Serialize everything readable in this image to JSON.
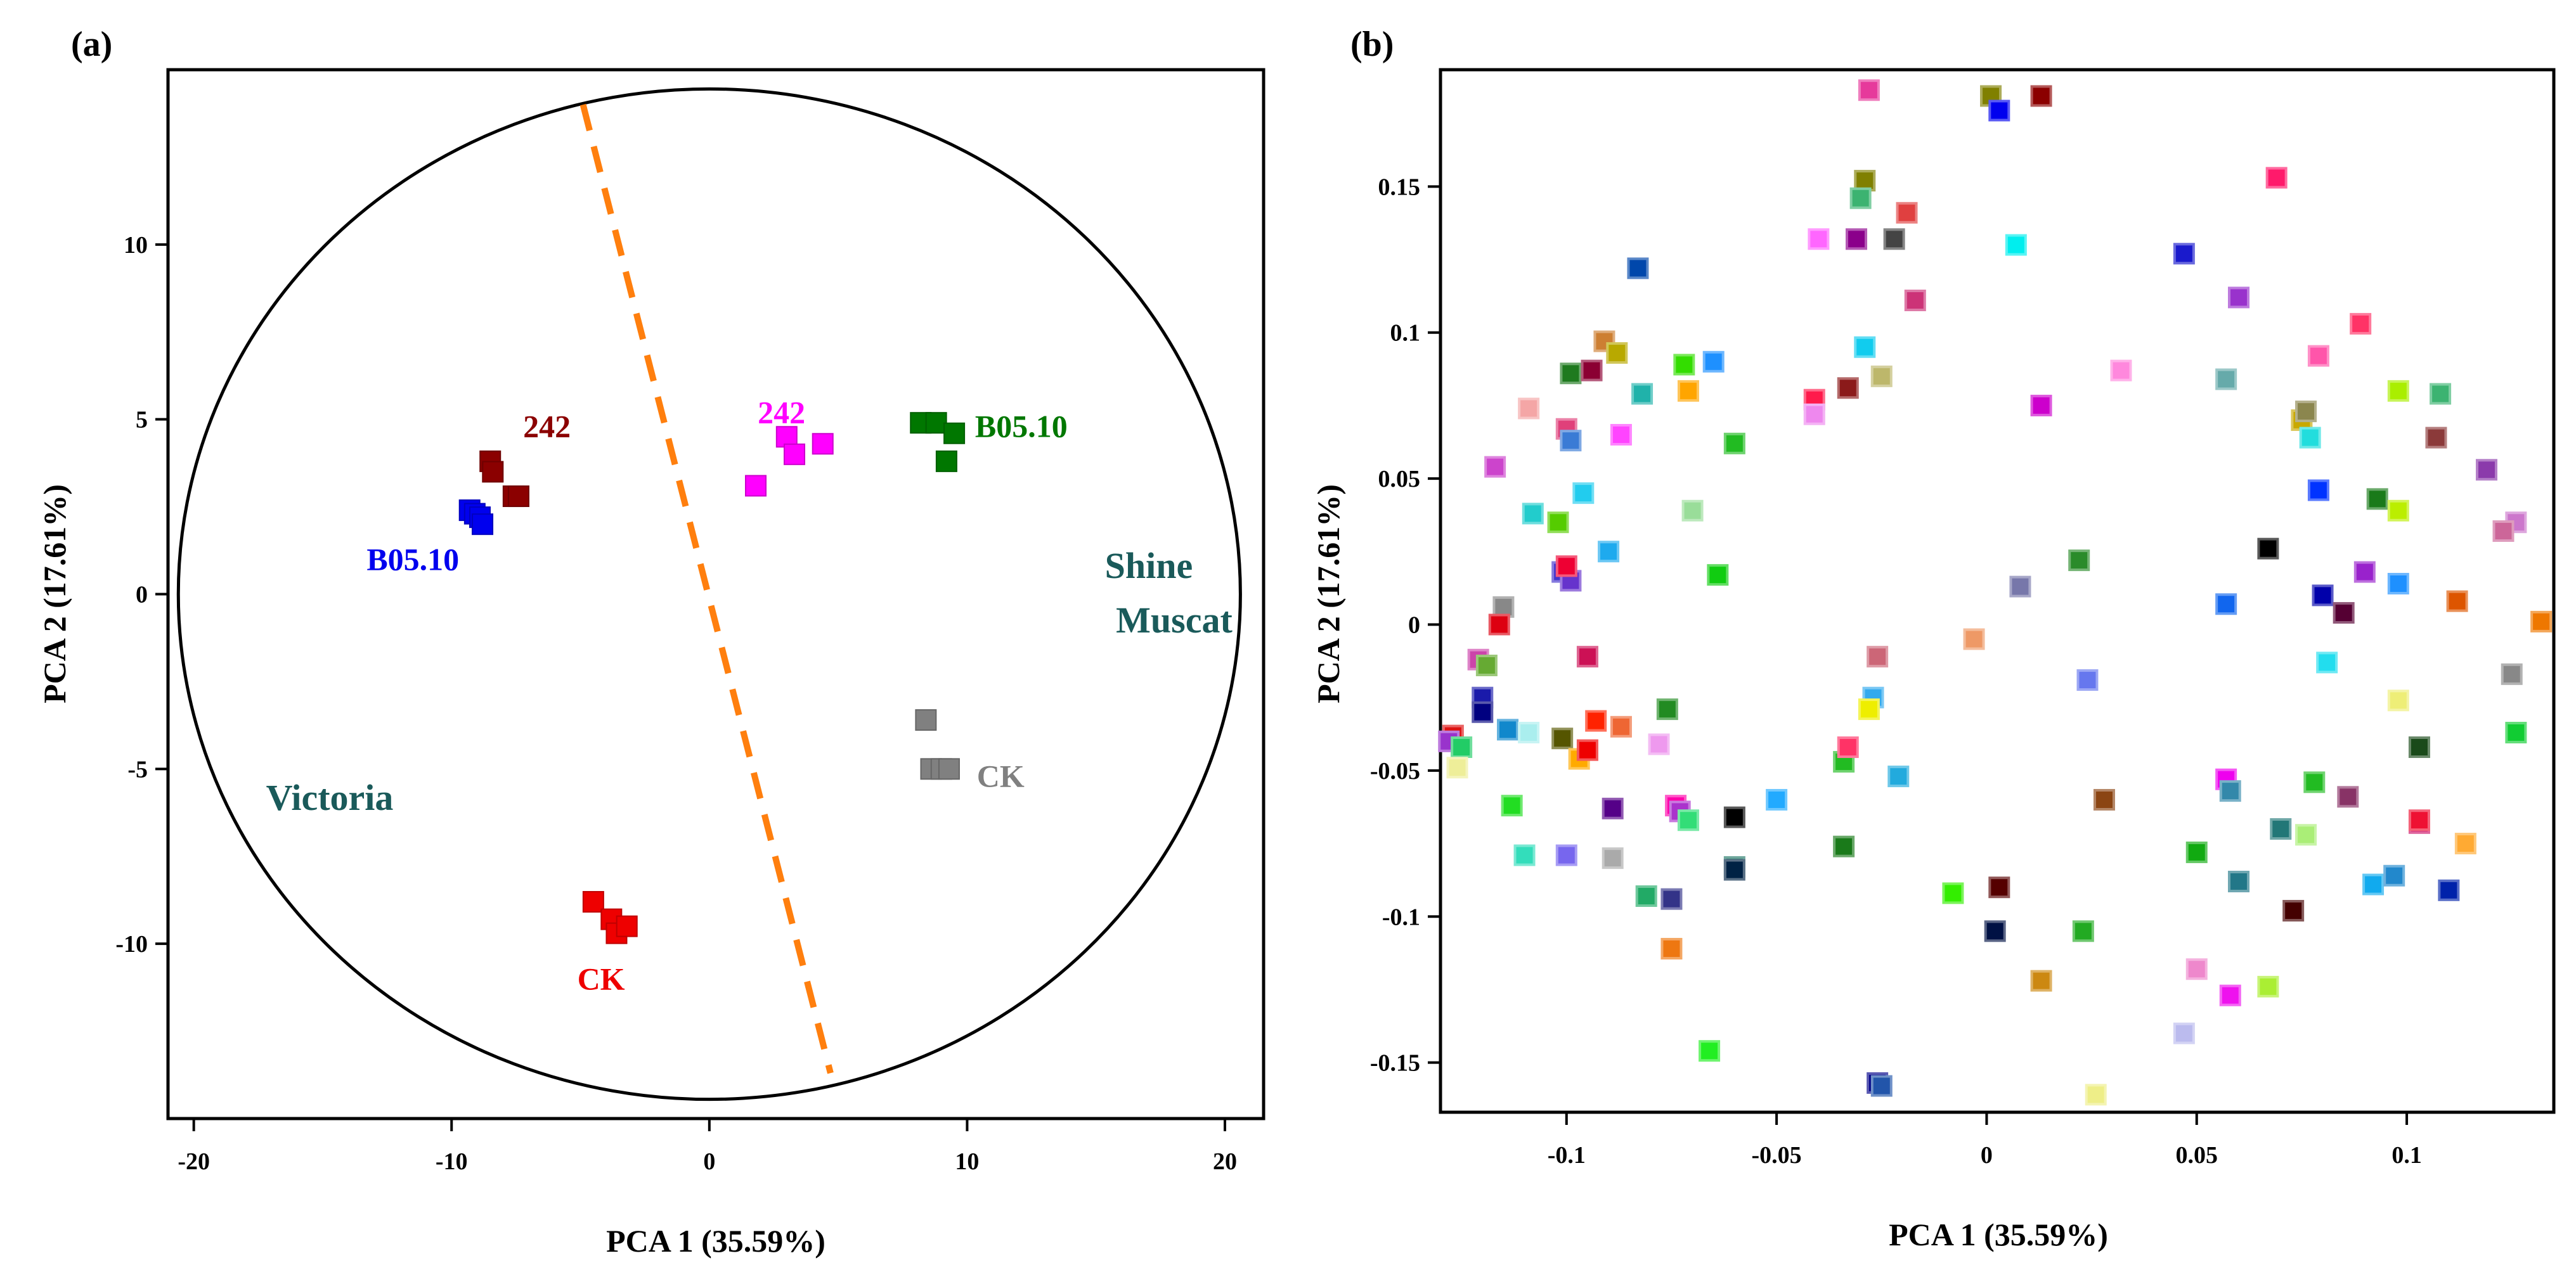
{
  "panel_a": {
    "label": "(a)",
    "xlabel": "PCA 1 (35.59%)",
    "ylabel": "PCA 2 (17.61%)",
    "cultivar_left": "Victoria",
    "cultivar_right_line1": "Shine",
    "cultivar_right_line2": "Muscat"
  },
  "panel_b": {
    "label": "(b)",
    "xlabel": "PCA 1 (35.59%)",
    "ylabel": "PCA 2 (17.61%)"
  },
  "chart_data": [
    {
      "type": "scatter",
      "title": "(a)",
      "xlabel": "PCA 1 (35.59%)",
      "ylabel": "PCA 2 (17.61%)",
      "xlim": [
        -21,
        21.5
      ],
      "ylim": [
        -15,
        15
      ],
      "xticks": [
        -20,
        -10,
        0,
        10,
        20
      ],
      "yticks": [
        -10,
        -5,
        0,
        5,
        10
      ],
      "circle": {
        "center": [
          0,
          0
        ],
        "rx": 20.6,
        "ry": 14.45,
        "color": "#000000"
      },
      "divider": {
        "x": [
          -4.9,
          4.7
        ],
        "y": [
          14,
          -13.7
        ],
        "color": "#ff7f0e",
        "style": "dashed"
      },
      "series": [
        {
          "name": "B05.10",
          "cultivar": "Victoria",
          "color": "#0000ee",
          "label_pos": [
            -11.5,
            1.0
          ],
          "points": [
            [
              -9.3,
              2.4
            ],
            [
              -9.1,
              2.3
            ],
            [
              -8.9,
              2.2
            ],
            [
              -8.8,
              2.0
            ]
          ]
        },
        {
          "name": "242",
          "cultivar": "Victoria",
          "color": "#8b0000",
          "label_pos": [
            -6.3,
            4.8
          ],
          "points": [
            [
              -8.5,
              3.8
            ],
            [
              -8.4,
              3.5
            ],
            [
              -7.6,
              2.8
            ],
            [
              -7.4,
              2.8
            ]
          ]
        },
        {
          "name": "CK",
          "cultivar": "Victoria",
          "color": "#ee0000",
          "label_pos": [
            -4.2,
            -11.0
          ],
          "points": [
            [
              -4.5,
              -8.8
            ],
            [
              -3.8,
              -9.3
            ],
            [
              -3.6,
              -9.7
            ],
            [
              -3.2,
              -9.5
            ]
          ]
        },
        {
          "name": "242",
          "cultivar": "Shine Muscat",
          "color": "#ff00ff",
          "label_pos": [
            2.8,
            5.2
          ],
          "points": [
            [
              1.8,
              3.1
            ],
            [
              3.0,
              4.5
            ],
            [
              3.3,
              4.0
            ],
            [
              4.4,
              4.3
            ]
          ]
        },
        {
          "name": "B05.10",
          "cultivar": "Shine Muscat",
          "color": "#007700",
          "label_pos": [
            12.1,
            4.8
          ],
          "points": [
            [
              8.2,
              4.9
            ],
            [
              8.8,
              4.9
            ],
            [
              9.2,
              3.8
            ],
            [
              9.5,
              4.6
            ]
          ]
        },
        {
          "name": "CK",
          "cultivar": "Shine Muscat",
          "color": "#808080",
          "label_pos": [
            11.3,
            -5.2
          ],
          "points": [
            [
              8.4,
              -3.6
            ],
            [
              8.6,
              -5.0
            ],
            [
              9.0,
              -5.0
            ],
            [
              9.3,
              -5.0
            ]
          ]
        }
      ]
    },
    {
      "type": "scatter",
      "title": "(b)",
      "xlabel": "PCA 1 (35.59%)",
      "ylabel": "PCA 2 (17.61%)",
      "xlim": [
        -0.13,
        0.135
      ],
      "ylim": [
        -0.167,
        0.19
      ],
      "xticks": [
        -0.1,
        -0.05,
        0,
        0.05,
        0.1
      ],
      "xtick_labels": [
        "-0.1",
        "-0.05",
        "0",
        "0.05",
        "0.1"
      ],
      "yticks": [
        -0.15,
        -0.1,
        -0.05,
        0,
        0.05,
        0.1,
        0.15
      ],
      "ytick_labels": [
        "-0.15",
        "-0.1",
        "-0.05",
        "0",
        "0.05",
        "0.1",
        "0.15"
      ],
      "points": [
        {
          "x": -0.028,
          "y": 0.183,
          "color": "#e6399b"
        },
        {
          "x": 0.001,
          "y": 0.181,
          "color": "#808000"
        },
        {
          "x": 0.003,
          "y": 0.176,
          "color": "#0000ee"
        },
        {
          "x": 0.013,
          "y": 0.181,
          "color": "#8b0000"
        },
        {
          "x": -0.029,
          "y": 0.152,
          "color": "#808000"
        },
        {
          "x": -0.03,
          "y": 0.146,
          "color": "#3cb371"
        },
        {
          "x": 0.069,
          "y": 0.153,
          "color": "#ff1a6b"
        },
        {
          "x": -0.04,
          "y": 0.132,
          "color": "#ff66ff"
        },
        {
          "x": -0.031,
          "y": 0.132,
          "color": "#8b008b"
        },
        {
          "x": -0.022,
          "y": 0.132,
          "color": "#444444"
        },
        {
          "x": -0.019,
          "y": 0.141,
          "color": "#e04040"
        },
        {
          "x": 0.007,
          "y": 0.13,
          "color": "#00eeee"
        },
        {
          "x": 0.047,
          "y": 0.127,
          "color": "#1a1acc"
        },
        {
          "x": -0.083,
          "y": 0.122,
          "color": "#0047ab"
        },
        {
          "x": -0.017,
          "y": 0.111,
          "color": "#cc3377"
        },
        {
          "x": 0.06,
          "y": 0.112,
          "color": "#9932cc"
        },
        {
          "x": 0.089,
          "y": 0.103,
          "color": "#ff3366"
        },
        {
          "x": -0.091,
          "y": 0.097,
          "color": "#cd7f32"
        },
        {
          "x": -0.088,
          "y": 0.093,
          "color": "#b8a900"
        },
        {
          "x": -0.029,
          "y": 0.095,
          "color": "#11ccee"
        },
        {
          "x": -0.025,
          "y": 0.085,
          "color": "#bdb76b"
        },
        {
          "x": 0.032,
          "y": 0.087,
          "color": "#ff88dd"
        },
        {
          "x": 0.079,
          "y": 0.092,
          "color": "#ff55aa"
        },
        {
          "x": -0.099,
          "y": 0.086,
          "color": "#1f7a1f"
        },
        {
          "x": -0.094,
          "y": 0.087,
          "color": "#8b0033"
        },
        {
          "x": -0.072,
          "y": 0.089,
          "color": "#33dd00"
        },
        {
          "x": -0.065,
          "y": 0.09,
          "color": "#1e90ff"
        },
        {
          "x": -0.082,
          "y": 0.079,
          "color": "#20b2aa"
        },
        {
          "x": -0.071,
          "y": 0.08,
          "color": "#ffa500"
        },
        {
          "x": -0.109,
          "y": 0.074,
          "color": "#f4a6a6"
        },
        {
          "x": -0.1,
          "y": 0.067,
          "color": "#e0407a"
        },
        {
          "x": -0.099,
          "y": 0.063,
          "color": "#3a7bd5"
        },
        {
          "x": -0.087,
          "y": 0.065,
          "color": "#ff44ff"
        },
        {
          "x": -0.06,
          "y": 0.062,
          "color": "#22bb22"
        },
        {
          "x": -0.041,
          "y": 0.077,
          "color": "#ff1a4b"
        },
        {
          "x": -0.041,
          "y": 0.072,
          "color": "#ee88ee"
        },
        {
          "x": -0.033,
          "y": 0.081,
          "color": "#8b1a1a"
        },
        {
          "x": 0.013,
          "y": 0.075,
          "color": "#cc00cc"
        },
        {
          "x": 0.057,
          "y": 0.084,
          "color": "#66aaaa"
        },
        {
          "x": 0.075,
          "y": 0.07,
          "color": "#c8a800"
        },
        {
          "x": 0.076,
          "y": 0.073,
          "color": "#8b864e"
        },
        {
          "x": 0.077,
          "y": 0.064,
          "color": "#22dddd"
        },
        {
          "x": 0.098,
          "y": 0.08,
          "color": "#aaee00"
        },
        {
          "x": 0.108,
          "y": 0.079,
          "color": "#3cb371"
        },
        {
          "x": 0.107,
          "y": 0.064,
          "color": "#8b3a3a"
        },
        {
          "x": -0.117,
          "y": 0.054,
          "color": "#cc44cc"
        },
        {
          "x": -0.096,
          "y": 0.045,
          "color": "#22ccee"
        },
        {
          "x": -0.108,
          "y": 0.038,
          "color": "#22cccc"
        },
        {
          "x": -0.102,
          "y": 0.035,
          "color": "#55cc00"
        },
        {
          "x": -0.07,
          "y": 0.039,
          "color": "#99dd99"
        },
        {
          "x": -0.09,
          "y": 0.025,
          "color": "#1eaaee"
        },
        {
          "x": 0.079,
          "y": 0.046,
          "color": "#0033ff"
        },
        {
          "x": 0.093,
          "y": 0.043,
          "color": "#1a7a1a"
        },
        {
          "x": 0.098,
          "y": 0.039,
          "color": "#bbee00"
        },
        {
          "x": 0.119,
          "y": 0.053,
          "color": "#8b3aab"
        },
        {
          "x": 0.126,
          "y": 0.035,
          "color": "#cc77cc"
        },
        {
          "x": 0.123,
          "y": 0.032,
          "color": "#cc6699"
        },
        {
          "x": -0.101,
          "y": 0.018,
          "color": "#4433cc"
        },
        {
          "x": -0.099,
          "y": 0.015,
          "color": "#6633cc"
        },
        {
          "x": -0.1,
          "y": 0.02,
          "color": "#ee0033"
        },
        {
          "x": -0.064,
          "y": 0.017,
          "color": "#11cc11"
        },
        {
          "x": 0.008,
          "y": 0.013,
          "color": "#7777aa"
        },
        {
          "x": 0.022,
          "y": 0.022,
          "color": "#2a8b2a"
        },
        {
          "x": 0.067,
          "y": 0.026,
          "color": "#000000"
        },
        {
          "x": 0.09,
          "y": 0.018,
          "color": "#9922cc"
        },
        {
          "x": 0.057,
          "y": 0.007,
          "color": "#1166ee"
        },
        {
          "x": 0.08,
          "y": 0.01,
          "color": "#0000aa"
        },
        {
          "x": 0.085,
          "y": 0.004,
          "color": "#550033"
        },
        {
          "x": 0.098,
          "y": 0.014,
          "color": "#1e90ff"
        },
        {
          "x": 0.112,
          "y": 0.008,
          "color": "#dd5500"
        },
        {
          "x": 0.132,
          "y": 0.001,
          "color": "#ee7700"
        },
        {
          "x": -0.115,
          "y": 0.006,
          "color": "#888888"
        },
        {
          "x": -0.116,
          "y": 0.0,
          "color": "#dd0011"
        },
        {
          "x": -0.003,
          "y": -0.005,
          "color": "#ee9966"
        },
        {
          "x": 0.081,
          "y": -0.013,
          "color": "#22ddee"
        },
        {
          "x": 0.125,
          "y": -0.017,
          "color": "#888888"
        },
        {
          "x": -0.121,
          "y": -0.012,
          "color": "#cc44aa"
        },
        {
          "x": -0.119,
          "y": -0.014,
          "color": "#66aa33"
        },
        {
          "x": -0.095,
          "y": -0.011,
          "color": "#cc1155"
        },
        {
          "x": -0.026,
          "y": -0.011,
          "color": "#cc6677"
        },
        {
          "x": -0.027,
          "y": -0.025,
          "color": "#33aaee"
        },
        {
          "x": -0.028,
          "y": -0.029,
          "color": "#eeee00"
        },
        {
          "x": 0.024,
          "y": -0.019,
          "color": "#6677ee"
        },
        {
          "x": 0.098,
          "y": -0.026,
          "color": "#eeee77"
        },
        {
          "x": -0.12,
          "y": -0.025,
          "color": "#1a1aaa"
        },
        {
          "x": -0.12,
          "y": -0.03,
          "color": "#000080"
        },
        {
          "x": -0.114,
          "y": -0.036,
          "color": "#1188cc"
        },
        {
          "x": -0.109,
          "y": -0.037,
          "color": "#aaeeee"
        },
        {
          "x": -0.101,
          "y": -0.039,
          "color": "#555500"
        },
        {
          "x": -0.093,
          "y": -0.033,
          "color": "#ff2200"
        },
        {
          "x": -0.087,
          "y": -0.035,
          "color": "#ee6633"
        },
        {
          "x": -0.076,
          "y": -0.029,
          "color": "#228b22"
        },
        {
          "x": -0.078,
          "y": -0.041,
          "color": "#ee99ee"
        },
        {
          "x": -0.034,
          "y": -0.047,
          "color": "#22bb22"
        },
        {
          "x": -0.033,
          "y": -0.042,
          "color": "#ff3366"
        },
        {
          "x": -0.021,
          "y": -0.052,
          "color": "#22aadd"
        },
        {
          "x": 0.126,
          "y": -0.037,
          "color": "#11cc33"
        },
        {
          "x": -0.127,
          "y": -0.038,
          "color": "#dd1111"
        },
        {
          "x": -0.128,
          "y": -0.04,
          "color": "#9933cc"
        },
        {
          "x": -0.125,
          "y": -0.042,
          "color": "#22cc66"
        },
        {
          "x": -0.126,
          "y": -0.049,
          "color": "#eeee99"
        },
        {
          "x": -0.097,
          "y": -0.046,
          "color": "#ffaa00"
        },
        {
          "x": -0.095,
          "y": -0.043,
          "color": "#ee0000"
        },
        {
          "x": -0.074,
          "y": -0.062,
          "color": "#ff00aa"
        },
        {
          "x": -0.073,
          "y": -0.064,
          "color": "#aa33cc"
        },
        {
          "x": -0.071,
          "y": -0.067,
          "color": "#33dd77"
        },
        {
          "x": -0.06,
          "y": -0.066,
          "color": "#000000"
        },
        {
          "x": -0.05,
          "y": -0.06,
          "color": "#22aaff"
        },
        {
          "x": -0.034,
          "y": -0.076,
          "color": "#1a7a1a"
        },
        {
          "x": 0.057,
          "y": -0.053,
          "color": "#ee00ee"
        },
        {
          "x": 0.058,
          "y": -0.057,
          "color": "#3388aa"
        },
        {
          "x": 0.078,
          "y": -0.054,
          "color": "#22bb22"
        },
        {
          "x": 0.103,
          "y": -0.042,
          "color": "#1a4a1a"
        },
        {
          "x": 0.028,
          "y": -0.06,
          "color": "#8b4513"
        },
        {
          "x": 0.07,
          "y": -0.07,
          "color": "#227777"
        },
        {
          "x": 0.076,
          "y": -0.072,
          "color": "#aaee77"
        },
        {
          "x": 0.086,
          "y": -0.059,
          "color": "#883366"
        },
        {
          "x": 0.103,
          "y": -0.068,
          "color": "#cc1166"
        },
        {
          "x": 0.103,
          "y": -0.067,
          "color": "#ee1133"
        },
        {
          "x": 0.114,
          "y": -0.075,
          "color": "#ffaa33"
        },
        {
          "x": -0.113,
          "y": -0.062,
          "color": "#22dd22"
        },
        {
          "x": -0.11,
          "y": -0.079,
          "color": "#33ddbb"
        },
        {
          "x": -0.1,
          "y": -0.079,
          "color": "#7766ee"
        },
        {
          "x": -0.089,
          "y": -0.08,
          "color": "#aaaaaa"
        },
        {
          "x": -0.089,
          "y": -0.063,
          "color": "#550088"
        },
        {
          "x": -0.06,
          "y": -0.083,
          "color": "#227766"
        },
        {
          "x": -0.06,
          "y": -0.084,
          "color": "#002244"
        },
        {
          "x": 0.05,
          "y": -0.078,
          "color": "#11aa11"
        },
        {
          "x": 0.06,
          "y": -0.088,
          "color": "#227788"
        },
        {
          "x": -0.081,
          "y": -0.093,
          "color": "#22aa66"
        },
        {
          "x": -0.075,
          "y": -0.094,
          "color": "#333388"
        },
        {
          "x": -0.008,
          "y": -0.092,
          "color": "#33ee00"
        },
        {
          "x": 0.003,
          "y": -0.09,
          "color": "#550000"
        },
        {
          "x": 0.073,
          "y": -0.098,
          "color": "#440000"
        },
        {
          "x": 0.092,
          "y": -0.089,
          "color": "#11aaee"
        },
        {
          "x": 0.097,
          "y": -0.086,
          "color": "#2288cc"
        },
        {
          "x": 0.11,
          "y": -0.091,
          "color": "#0022aa"
        },
        {
          "x": -0.075,
          "y": -0.111,
          "color": "#ee7711"
        },
        {
          "x": 0.002,
          "y": -0.105,
          "color": "#001144"
        },
        {
          "x": 0.023,
          "y": -0.105,
          "color": "#22aa22"
        },
        {
          "x": 0.047,
          "y": -0.14,
          "color": "#bbbbee"
        },
        {
          "x": 0.05,
          "y": -0.118,
          "color": "#ee88cc"
        },
        {
          "x": 0.067,
          "y": -0.124,
          "color": "#aaee33"
        },
        {
          "x": 0.058,
          "y": -0.127,
          "color": "#ee11ee"
        },
        {
          "x": 0.013,
          "y": -0.122,
          "color": "#cc8811"
        },
        {
          "x": -0.066,
          "y": -0.146,
          "color": "#22ee22"
        },
        {
          "x": -0.026,
          "y": -0.157,
          "color": "#000088"
        },
        {
          "x": -0.025,
          "y": -0.158,
          "color": "#2255aa"
        },
        {
          "x": 0.026,
          "y": -0.161,
          "color": "#eeee88"
        }
      ]
    }
  ]
}
